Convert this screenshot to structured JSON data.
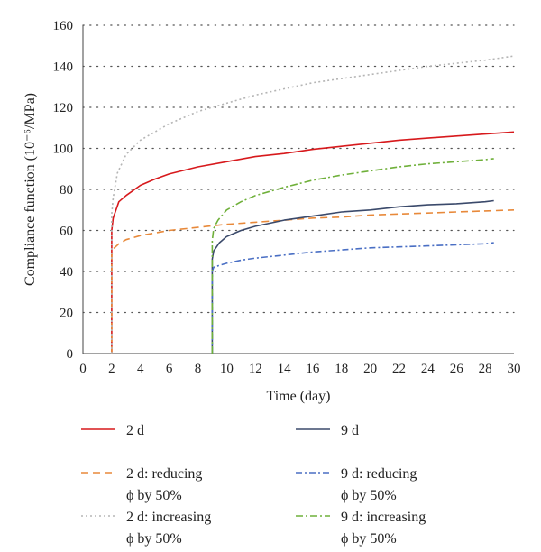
{
  "chart_data": {
    "type": "line",
    "xlabel": "Time (day)",
    "ylabel": "Compliance function (10⁻⁶/MPa)",
    "xlim": [
      0,
      30
    ],
    "ylim": [
      0,
      160
    ],
    "x_ticks": [
      0,
      2,
      4,
      6,
      8,
      10,
      12,
      14,
      16,
      18,
      20,
      22,
      24,
      26,
      28,
      30
    ],
    "y_ticks": [
      0,
      20,
      40,
      60,
      80,
      100,
      120,
      140,
      160
    ],
    "grid": "dotted horizontal",
    "legend_position": "bottom",
    "series": [
      {
        "name": "2 d",
        "color": "#d7191c",
        "dash": "solid",
        "x": [
          2,
          2,
          2.1,
          2.5,
          3,
          4,
          5,
          6,
          8,
          10,
          12,
          14,
          16,
          18,
          20,
          22,
          24,
          26,
          28,
          30
        ],
        "y": [
          0,
          60,
          66,
          74,
          77,
          82,
          85,
          87.5,
          91,
          93.5,
          96,
          97.5,
          99.5,
          101,
          102.5,
          104,
          105,
          106,
          107,
          108
        ]
      },
      {
        "name": "2 d: reducing\nϕ by 50%",
        "color": "#e8893a",
        "dash": "8,5",
        "x": [
          2,
          2,
          2.1,
          2.5,
          3,
          4,
          6,
          8,
          10,
          12,
          14,
          16,
          18,
          20,
          22,
          24,
          26,
          28,
          30
        ],
        "y": [
          0,
          48,
          51,
          53.5,
          55.5,
          57.5,
          60,
          61.5,
          63,
          64,
          65,
          66,
          66.5,
          67.5,
          68,
          68.5,
          69,
          69.5,
          70
        ]
      },
      {
        "name": "2 d: increasing\nϕ by 50%",
        "color": "#b5b5b5",
        "dash": "2,3",
        "x": [
          2,
          2,
          2.1,
          2.4,
          3,
          4,
          5,
          6,
          8,
          10,
          12,
          14,
          16,
          18,
          20,
          22,
          24,
          26,
          28,
          30
        ],
        "y": [
          0,
          68,
          76,
          88,
          97,
          104,
          108,
          112,
          118,
          122,
          126,
          129,
          132,
          134,
          136,
          138,
          140,
          141.5,
          143,
          145
        ]
      },
      {
        "name": "9 d",
        "color": "#3b4a6b",
        "dash": "solid",
        "x": [
          9,
          9,
          9.1,
          9.5,
          10,
          11,
          12,
          14,
          16,
          18,
          20,
          22,
          24,
          26,
          28,
          28.6
        ],
        "y": [
          0,
          46,
          50,
          54,
          57,
          60,
          62,
          65,
          67,
          69,
          70,
          71.5,
          72.5,
          73,
          74,
          74.5
        ]
      },
      {
        "name": "9 d: reducing\nϕ by 50%",
        "color": "#4a6fc4",
        "dash": "7,3,2,3",
        "x": [
          9,
          9,
          9.1,
          9.5,
          10,
          11,
          12,
          14,
          16,
          18,
          20,
          22,
          24,
          26,
          28,
          28.6
        ],
        "y": [
          0,
          40,
          42,
          43,
          44,
          45.5,
          46.5,
          48,
          49.5,
          50.5,
          51.5,
          52,
          52.5,
          53,
          53.5,
          54
        ]
      },
      {
        "name": "9 d: increasing\nϕ by 50%",
        "color": "#6fb03a",
        "dash": "8,3,2,3",
        "x": [
          9,
          9,
          9.1,
          9.4,
          10,
          11,
          12,
          14,
          16,
          18,
          20,
          22,
          24,
          26,
          28,
          28.6
        ],
        "y": [
          0,
          55,
          61,
          65,
          70,
          74,
          77,
          81,
          84.5,
          87,
          89,
          91,
          92.5,
          93.5,
          94.5,
          95
        ]
      }
    ]
  }
}
